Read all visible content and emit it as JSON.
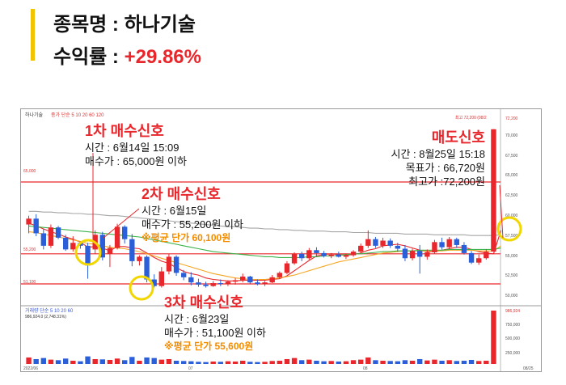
{
  "header": {
    "stock_label": "종목명 : ",
    "stock_name": "하나기술",
    "return_label": "수익률 : ",
    "return_value": "+29.86%"
  },
  "chart_panel": {
    "legend_text": "하나기술",
    "ma_legend": "종가 단순 5 10 20 60 120",
    "top_right_text": "최고 72,200 (08/2",
    "volume_legend": "거래량 단순 5 10 20 60",
    "volume_value": "986,924.0 (2,748.31%)",
    "date_labels": [
      "2022/06",
      "07",
      "08",
      "08/25"
    ],
    "price_axis_labels": [
      "72,200",
      "70,000",
      "67,500",
      "65,000",
      "62,500",
      "60,000",
      "57,500",
      "55,000",
      "52,500",
      "50,000"
    ],
    "volume_axis_labels": [
      "986,924",
      "750,000",
      "500,000",
      "250,000"
    ],
    "hline_labels": [
      "65,000",
      "55,200",
      "51,100"
    ]
  },
  "annotations": {
    "buy1": {
      "title": "1차 매수신호",
      "time": "시간 : 6월14일 15:09",
      "price": "매수가 : 65,000원 이하"
    },
    "buy2": {
      "title": "2차 매수신호",
      "time": "시간 : 6월15일",
      "price": "매수가 : 55,200원 이하",
      "avg": "※평균 단가 60,100원"
    },
    "buy3": {
      "title": "3차 매수신호",
      "time": "시간 : 6월23일",
      "price": "매수가 : 51,100원 이하",
      "avg": "※평균 단가 55,600원"
    },
    "sell": {
      "title": "매도신호",
      "time": "시간 : 8월25일 15:18",
      "target": "목표가 : 66,720원",
      "high": "최고가 :72,200원"
    }
  },
  "chart_data": {
    "type": "candlestick",
    "title": "하나기술",
    "y_range": [
      49000,
      73500
    ],
    "horizontal_lines": [
      65000,
      55200,
      51100
    ],
    "up_color": "#e8262b",
    "down_color": "#2b5fd9",
    "line_color": "#e8262b",
    "candles": [
      {
        "o": 59200,
        "h": 60400,
        "l": 58000,
        "c": 60000
      },
      {
        "o": 60000,
        "h": 60600,
        "l": 57600,
        "c": 58000
      },
      {
        "o": 58000,
        "h": 58600,
        "l": 55800,
        "c": 56300
      },
      {
        "o": 56300,
        "h": 59200,
        "l": 56000,
        "c": 58800
      },
      {
        "o": 58800,
        "h": 59000,
        "l": 57200,
        "c": 57400
      },
      {
        "o": 57400,
        "h": 57800,
        "l": 55600,
        "c": 55800
      },
      {
        "o": 55800,
        "h": 57600,
        "l": 55500,
        "c": 56700
      },
      {
        "o": 56700,
        "h": 56900,
        "l": 55900,
        "c": 56300
      },
      {
        "o": 56300,
        "h": 56700,
        "l": 51800,
        "c": 53600
      },
      {
        "o": 55800,
        "h": 58400,
        "l": 55200,
        "c": 57800
      },
      {
        "o": 57800,
        "h": 58200,
        "l": 54300,
        "c": 54700
      },
      {
        "o": 55200,
        "h": 56400,
        "l": 53400,
        "c": 56000
      },
      {
        "o": 56000,
        "h": 59300,
        "l": 55800,
        "c": 58900
      },
      {
        "o": 58900,
        "h": 59100,
        "l": 56600,
        "c": 57200
      },
      {
        "o": 57200,
        "h": 57900,
        "l": 53500,
        "c": 54200
      },
      {
        "o": 54200,
        "h": 55000,
        "l": 53600,
        "c": 54800
      },
      {
        "o": 54800,
        "h": 55000,
        "l": 51300,
        "c": 51700
      },
      {
        "o": 51700,
        "h": 52400,
        "l": 50600,
        "c": 50800
      },
      {
        "o": 50800,
        "h": 53400,
        "l": 50600,
        "c": 52800
      },
      {
        "o": 52800,
        "h": 55200,
        "l": 52400,
        "c": 54800
      },
      {
        "o": 54800,
        "h": 55000,
        "l": 52200,
        "c": 52600
      },
      {
        "o": 52600,
        "h": 53000,
        "l": 51600,
        "c": 52000
      },
      {
        "o": 52000,
        "h": 52700,
        "l": 50900,
        "c": 51300
      },
      {
        "o": 51300,
        "h": 51800,
        "l": 50700,
        "c": 51000
      },
      {
        "o": 51000,
        "h": 51400,
        "l": 50600,
        "c": 50800
      },
      {
        "o": 50800,
        "h": 51500,
        "l": 50700,
        "c": 51200
      },
      {
        "o": 51200,
        "h": 51700,
        "l": 50800,
        "c": 51100
      },
      {
        "o": 51100,
        "h": 51600,
        "l": 50800,
        "c": 51400
      },
      {
        "o": 51400,
        "h": 51900,
        "l": 51000,
        "c": 51600
      },
      {
        "o": 51600,
        "h": 52500,
        "l": 51300,
        "c": 52100
      },
      {
        "o": 52100,
        "h": 52200,
        "l": 51100,
        "c": 51300
      },
      {
        "o": 51300,
        "h": 51700,
        "l": 50900,
        "c": 51100
      },
      {
        "o": 51100,
        "h": 51500,
        "l": 50800,
        "c": 51300
      },
      {
        "o": 51300,
        "h": 52300,
        "l": 51200,
        "c": 52000
      },
      {
        "o": 52000,
        "h": 52800,
        "l": 51800,
        "c": 52600
      },
      {
        "o": 52600,
        "h": 54200,
        "l": 52400,
        "c": 53900
      },
      {
        "o": 53900,
        "h": 55400,
        "l": 53700,
        "c": 55200
      },
      {
        "o": 55200,
        "h": 55500,
        "l": 54200,
        "c": 54600
      },
      {
        "o": 54600,
        "h": 56000,
        "l": 54400,
        "c": 55700
      },
      {
        "o": 55700,
        "h": 56100,
        "l": 54800,
        "c": 55300
      },
      {
        "o": 55300,
        "h": 55600,
        "l": 54700,
        "c": 54900
      },
      {
        "o": 54900,
        "h": 55300,
        "l": 54600,
        "c": 55100
      },
      {
        "o": 55100,
        "h": 55500,
        "l": 54700,
        "c": 54800
      },
      {
        "o": 54800,
        "h": 55200,
        "l": 54500,
        "c": 55000
      },
      {
        "o": 55000,
        "h": 55700,
        "l": 54800,
        "c": 55500
      },
      {
        "o": 55500,
        "h": 56600,
        "l": 55300,
        "c": 56300
      },
      {
        "o": 56300,
        "h": 58400,
        "l": 56000,
        "c": 57200
      },
      {
        "o": 57200,
        "h": 57500,
        "l": 56000,
        "c": 56300
      },
      {
        "o": 56300,
        "h": 57400,
        "l": 56000,
        "c": 57000
      },
      {
        "o": 57000,
        "h": 57300,
        "l": 56000,
        "c": 56300
      },
      {
        "o": 56300,
        "h": 56700,
        "l": 55500,
        "c": 55900
      },
      {
        "o": 55900,
        "h": 56400,
        "l": 54200,
        "c": 54600
      },
      {
        "o": 54600,
        "h": 55900,
        "l": 54300,
        "c": 55600
      },
      {
        "o": 55600,
        "h": 56400,
        "l": 52500,
        "c": 54800
      },
      {
        "o": 54800,
        "h": 55800,
        "l": 54400,
        "c": 55400
      },
      {
        "o": 55400,
        "h": 57100,
        "l": 55200,
        "c": 56800
      },
      {
        "o": 56800,
        "h": 57400,
        "l": 55800,
        "c": 56100
      },
      {
        "o": 56100,
        "h": 57500,
        "l": 55900,
        "c": 57200
      },
      {
        "o": 57200,
        "h": 57400,
        "l": 56000,
        "c": 56400
      },
      {
        "o": 56400,
        "h": 56800,
        "l": 55100,
        "c": 55300
      },
      {
        "o": 55300,
        "h": 55600,
        "l": 53800,
        "c": 54000
      },
      {
        "o": 54000,
        "h": 55100,
        "l": 53700,
        "c": 54600
      },
      {
        "o": 54600,
        "h": 55800,
        "l": 54400,
        "c": 55500
      },
      {
        "o": 55500,
        "h": 72200,
        "l": 55500,
        "c": 72200
      }
    ],
    "ma_lines": [
      {
        "name": "5",
        "color": "#e8262b",
        "values": [
          59400,
          59000,
          58600,
          58200,
          57900,
          57500,
          57200,
          56800,
          56100,
          56200,
          56000,
          55600,
          56200,
          56200,
          56000,
          55900,
          55300,
          54700,
          54200,
          53900,
          53300,
          52800,
          52500,
          52300,
          51900,
          51700,
          51600,
          51500,
          51500,
          51600,
          51600,
          51600,
          51600,
          51700,
          51800,
          52200,
          52900,
          53600,
          54300,
          54900,
          55100,
          55200,
          55100,
          55000,
          55100,
          55300,
          55700,
          55900,
          56300,
          56400,
          56500,
          56300,
          56000,
          55700,
          55500,
          55500,
          55700,
          55900,
          56100,
          56100,
          55800,
          55500,
          55300,
          55200,
          58400
        ]
      },
      {
        "name": "20",
        "color": "#f5a623",
        "values": [
          58200,
          58100,
          57900,
          57700,
          57500,
          57300,
          57100,
          56900,
          56600,
          56500,
          56300,
          56100,
          56000,
          55900,
          55700,
          55500,
          55200,
          54900,
          54600,
          54300,
          54000,
          53700,
          53400,
          53100,
          52800,
          52500,
          52300,
          52100,
          51900,
          51800,
          51700,
          51700,
          51700,
          51800,
          51900,
          52100,
          52300,
          52600,
          52900,
          53200,
          53500,
          53800,
          54100,
          54300,
          54500,
          54700,
          54900,
          55100,
          55300,
          55400,
          55500,
          55600,
          55600,
          55600,
          55600,
          55600,
          55600,
          55700,
          55700,
          55700,
          55700,
          55600,
          55600,
          55600,
          56300
        ]
      },
      {
        "name": "60",
        "color": "#3cb24a",
        "values": [
          59000,
          58900,
          58800,
          58700,
          58600,
          58500,
          58400,
          58300,
          58200,
          58100,
          58000,
          57900,
          57800,
          57700,
          57600,
          57500,
          57300,
          57100,
          56900,
          56700,
          56500,
          56300,
          56100,
          55900,
          55700,
          55500,
          55400,
          55300,
          55200,
          55100,
          55000,
          54900,
          54800,
          54800,
          54700,
          54700,
          54700,
          54700,
          54800,
          54800,
          54900,
          54900,
          55000,
          55100,
          55200,
          55200,
          55300,
          55400,
          55500,
          55500,
          55600,
          55600,
          55600,
          55700,
          55700,
          55700,
          55700,
          55800,
          55800,
          55800,
          55800,
          55800,
          55800,
          55800,
          56000
        ]
      },
      {
        "name": "120",
        "color": "#a6a6a6",
        "values": [
          61000,
          61000,
          60900,
          60900,
          60800,
          60800,
          60700,
          60700,
          60600,
          60600,
          60500,
          60400,
          60400,
          60300,
          60200,
          60100,
          60000,
          59900,
          59800,
          59700,
          59600,
          59500,
          59400,
          59300,
          59200,
          59100,
          59000,
          58900,
          58900,
          58800,
          58700,
          58700,
          58600,
          58600,
          58500,
          58500,
          58400,
          58400,
          58300,
          58300,
          58300,
          58200,
          58200,
          58200,
          58100,
          58100,
          58100,
          58000,
          58000,
          58000,
          58000,
          57900,
          57900,
          57900,
          57900,
          57800,
          57800,
          57800,
          57800,
          57800,
          57700,
          57700,
          57700,
          57700,
          57800
        ]
      }
    ],
    "volume": [
      120,
      90,
      110,
      80,
      70,
      100,
      60,
      50,
      140,
      90,
      85,
      75,
      100,
      70,
      130,
      60,
      120,
      110,
      80,
      90,
      60,
      55,
      50,
      40,
      35,
      45,
      40,
      50,
      45,
      60,
      40,
      35,
      40,
      55,
      60,
      90,
      110,
      70,
      80,
      60,
      50,
      55,
      45,
      50,
      70,
      80,
      120,
      70,
      60,
      55,
      50,
      70,
      60,
      90,
      65,
      80,
      60,
      70,
      55,
      60,
      75,
      55,
      60,
      986
    ]
  }
}
